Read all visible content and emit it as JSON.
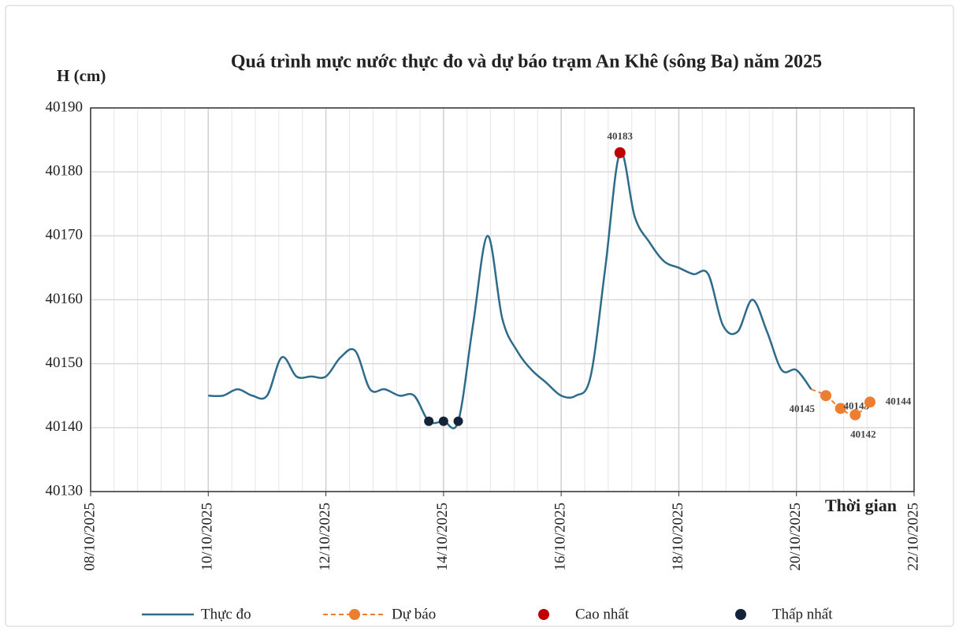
{
  "chart_data": {
    "type": "line",
    "title": "Quá trình mực nước thực đo và dự báo trạm An Khê (sông Ba) năm 2025",
    "y_label": "H (cm)",
    "x_label": "Thời gian",
    "xlim": [
      "2025-10-08T00:00",
      "2025-10-22T00:00"
    ],
    "xticks": [
      {
        "value": "2025-10-08T00:00",
        "label": "08/10/2025"
      },
      {
        "value": "2025-10-10T00:00",
        "label": "10/10/2025"
      },
      {
        "value": "2025-10-12T00:00",
        "label": "12/10/2025"
      },
      {
        "value": "2025-10-14T00:00",
        "label": "14/10/2025"
      },
      {
        "value": "2025-10-16T00:00",
        "label": "16/10/2025"
      },
      {
        "value": "2025-10-18T00:00",
        "label": "18/10/2025"
      },
      {
        "value": "2025-10-20T00:00",
        "label": "20/10/2025"
      },
      {
        "value": "2025-10-22T00:00",
        "label": "22/10/2025"
      }
    ],
    "ylim": [
      40130,
      40190
    ],
    "yticks": [
      40130,
      40140,
      40150,
      40160,
      40170,
      40180,
      40190
    ],
    "grid": true,
    "series": [
      {
        "name": "Thực đo",
        "color": "#2e6b8a",
        "style": "line",
        "x": [
          "2025-10-10T00:00",
          "2025-10-10T06:00",
          "2025-10-10T12:00",
          "2025-10-10T18:00",
          "2025-10-11T00:00",
          "2025-10-11T06:00",
          "2025-10-11T12:00",
          "2025-10-11T18:00",
          "2025-10-12T00:00",
          "2025-10-12T06:00",
          "2025-10-12T12:00",
          "2025-10-12T18:00",
          "2025-10-13T00:00",
          "2025-10-13T06:00",
          "2025-10-13T12:00",
          "2025-10-13T18:00",
          "2025-10-14T00:00",
          "2025-10-14T06:00",
          "2025-10-14T12:00",
          "2025-10-14T18:00",
          "2025-10-15T00:00",
          "2025-10-15T06:00",
          "2025-10-15T12:00",
          "2025-10-15T18:00",
          "2025-10-16T00:00",
          "2025-10-16T06:00",
          "2025-10-16T12:00",
          "2025-10-16T18:00",
          "2025-10-17T00:00",
          "2025-10-17T06:00",
          "2025-10-17T12:00",
          "2025-10-17T18:00",
          "2025-10-18T00:00",
          "2025-10-18T06:00",
          "2025-10-18T12:00",
          "2025-10-18T18:00",
          "2025-10-19T00:00",
          "2025-10-19T06:00",
          "2025-10-19T12:00",
          "2025-10-19T18:00",
          "2025-10-20T00:00",
          "2025-10-20T06:00"
        ],
        "values": [
          40145,
          40145,
          40146,
          40145,
          40145,
          40151,
          40148,
          40148,
          40148,
          40151,
          40152,
          40146,
          40146,
          40145,
          40145,
          40141,
          40141,
          40141,
          40156,
          40170,
          40157,
          40152,
          40149,
          40147,
          40145,
          40145,
          40148,
          40165,
          40183,
          40173,
          40169,
          40166,
          40165,
          40164,
          40164,
          40156,
          40155,
          40160,
          40155,
          40149,
          40149,
          40146
        ]
      },
      {
        "name": "Dự báo",
        "color": "#ed7d31",
        "style": "dashed",
        "x": [
          "2025-10-20T06:00",
          "2025-10-20T12:00",
          "2025-10-20T18:00",
          "2025-10-21T00:00",
          "2025-10-21T06:00"
        ],
        "values": [
          40146,
          40145,
          40143,
          40142,
          40144
        ]
      },
      {
        "name": "Cao nhất",
        "color": "#c00000",
        "style": "points",
        "x": [
          "2025-10-17T00:00"
        ],
        "values": [
          40183
        ]
      },
      {
        "name": "Thấp nhất",
        "color": "#14233a",
        "style": "points",
        "x": [
          "2025-10-13T18:00",
          "2025-10-14T00:00",
          "2025-10-14T06:00"
        ],
        "values": [
          40141,
          40141,
          40141
        ]
      }
    ]
  }
}
